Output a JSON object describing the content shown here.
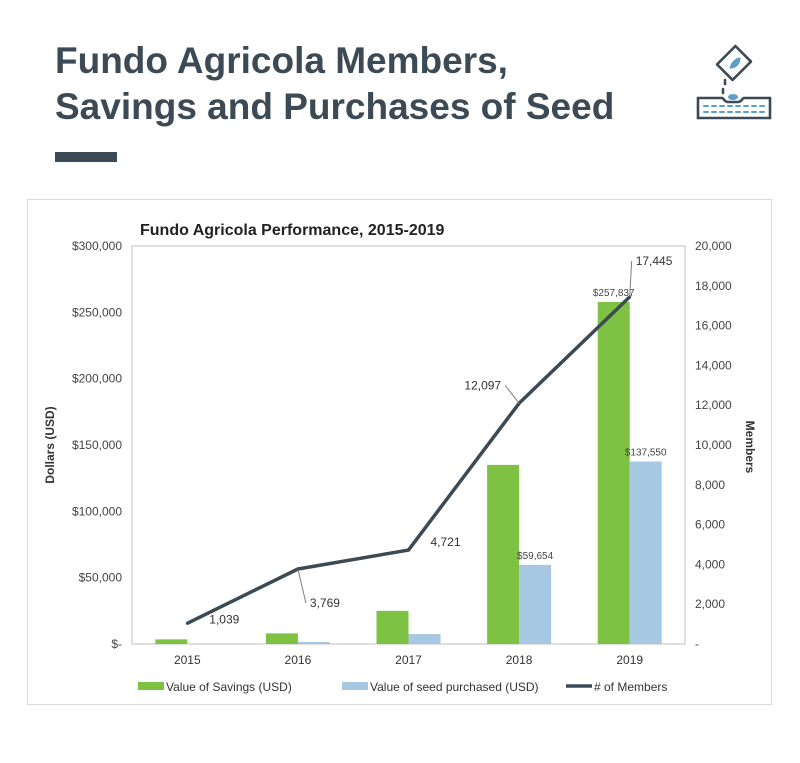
{
  "page": {
    "title_line1": "Fundo Agricola Members,",
    "title_line2": "Savings and Purchases of Seed",
    "icon": "seed-planting-icon",
    "accent_color": "#3c4a55"
  },
  "chart_data": {
    "type": "bar",
    "title": "Fundo Agricola Performance, 2015-2019",
    "categories": [
      "2015",
      "2016",
      "2017",
      "2018",
      "2019"
    ],
    "ylabel": "Dollars (USD)",
    "y2label": "Members",
    "ylim": [
      0,
      300000
    ],
    "y2lim": [
      0,
      20000
    ],
    "yticks": [
      "$-",
      "$50,000",
      "$100,000",
      "$150,000",
      "$200,000",
      "$250,000",
      "$300,000"
    ],
    "y2ticks": [
      "-",
      "2,000",
      "4,000",
      "6,000",
      "8,000",
      "10,000",
      "12,000",
      "14,000",
      "16,000",
      "18,000",
      "20,000"
    ],
    "series": [
      {
        "name": "Value of Savings (USD)",
        "type": "bar",
        "axis": "left",
        "color": "#7dc242",
        "values": [
          3500,
          8000,
          25000,
          135000,
          257837
        ],
        "data_labels": [
          "",
          "",
          "",
          "",
          "$257,837"
        ]
      },
      {
        "name": "Value of seed purchased (USD)",
        "type": "bar",
        "axis": "left",
        "color": "#a6c8e2",
        "values": [
          0,
          1500,
          7500,
          59654,
          137550
        ],
        "data_labels": [
          "",
          "",
          "",
          "$59,654",
          "$137,550"
        ]
      },
      {
        "name": "# of Members",
        "type": "line",
        "axis": "right",
        "color": "#3c4a55",
        "values": [
          1039,
          3769,
          4721,
          12097,
          17445
        ],
        "data_labels": [
          "1,039",
          "3,769",
          "4,721",
          "12,097",
          "17,445"
        ]
      }
    ],
    "grid": false,
    "legend_position": "bottom"
  }
}
